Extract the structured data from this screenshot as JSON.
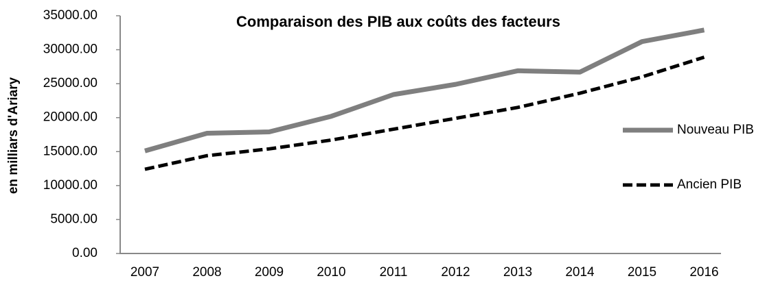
{
  "chart_data": {
    "type": "line",
    "title": "Comparaison des PIB aux coûts des facteurs",
    "y_label": "en milliars d'Ariary",
    "categories": [
      "2007",
      "2008",
      "2009",
      "2010",
      "2011",
      "2012",
      "2013",
      "2014",
      "2015",
      "2016"
    ],
    "series": [
      {
        "name": "Nouveau PIB",
        "color": "#7f7f7f",
        "style": "solid",
        "values": [
          15100,
          17700,
          17900,
          20200,
          23400,
          24900,
          26900,
          26700,
          31200,
          32900
        ]
      },
      {
        "name": "Ancien PIB",
        "color": "#000000",
        "style": "dashed",
        "values": [
          12400,
          14400,
          15400,
          16700,
          18300,
          19900,
          21500,
          23600,
          26000,
          28900
        ]
      }
    ],
    "ylim": [
      0,
      35000
    ],
    "yticks": [
      {
        "value": 0,
        "label": "0.00"
      },
      {
        "value": 5000,
        "label": "5000.00"
      },
      {
        "value": 10000,
        "label": "10000.00"
      },
      {
        "value": 15000,
        "label": "15000.00"
      },
      {
        "value": 20000,
        "label": "20000.00"
      },
      {
        "value": 25000,
        "label": "25000.00"
      },
      {
        "value": 30000,
        "label": "30000.00"
      },
      {
        "value": 35000,
        "label": "35000.00"
      }
    ],
    "grid": false,
    "legend": "right"
  }
}
